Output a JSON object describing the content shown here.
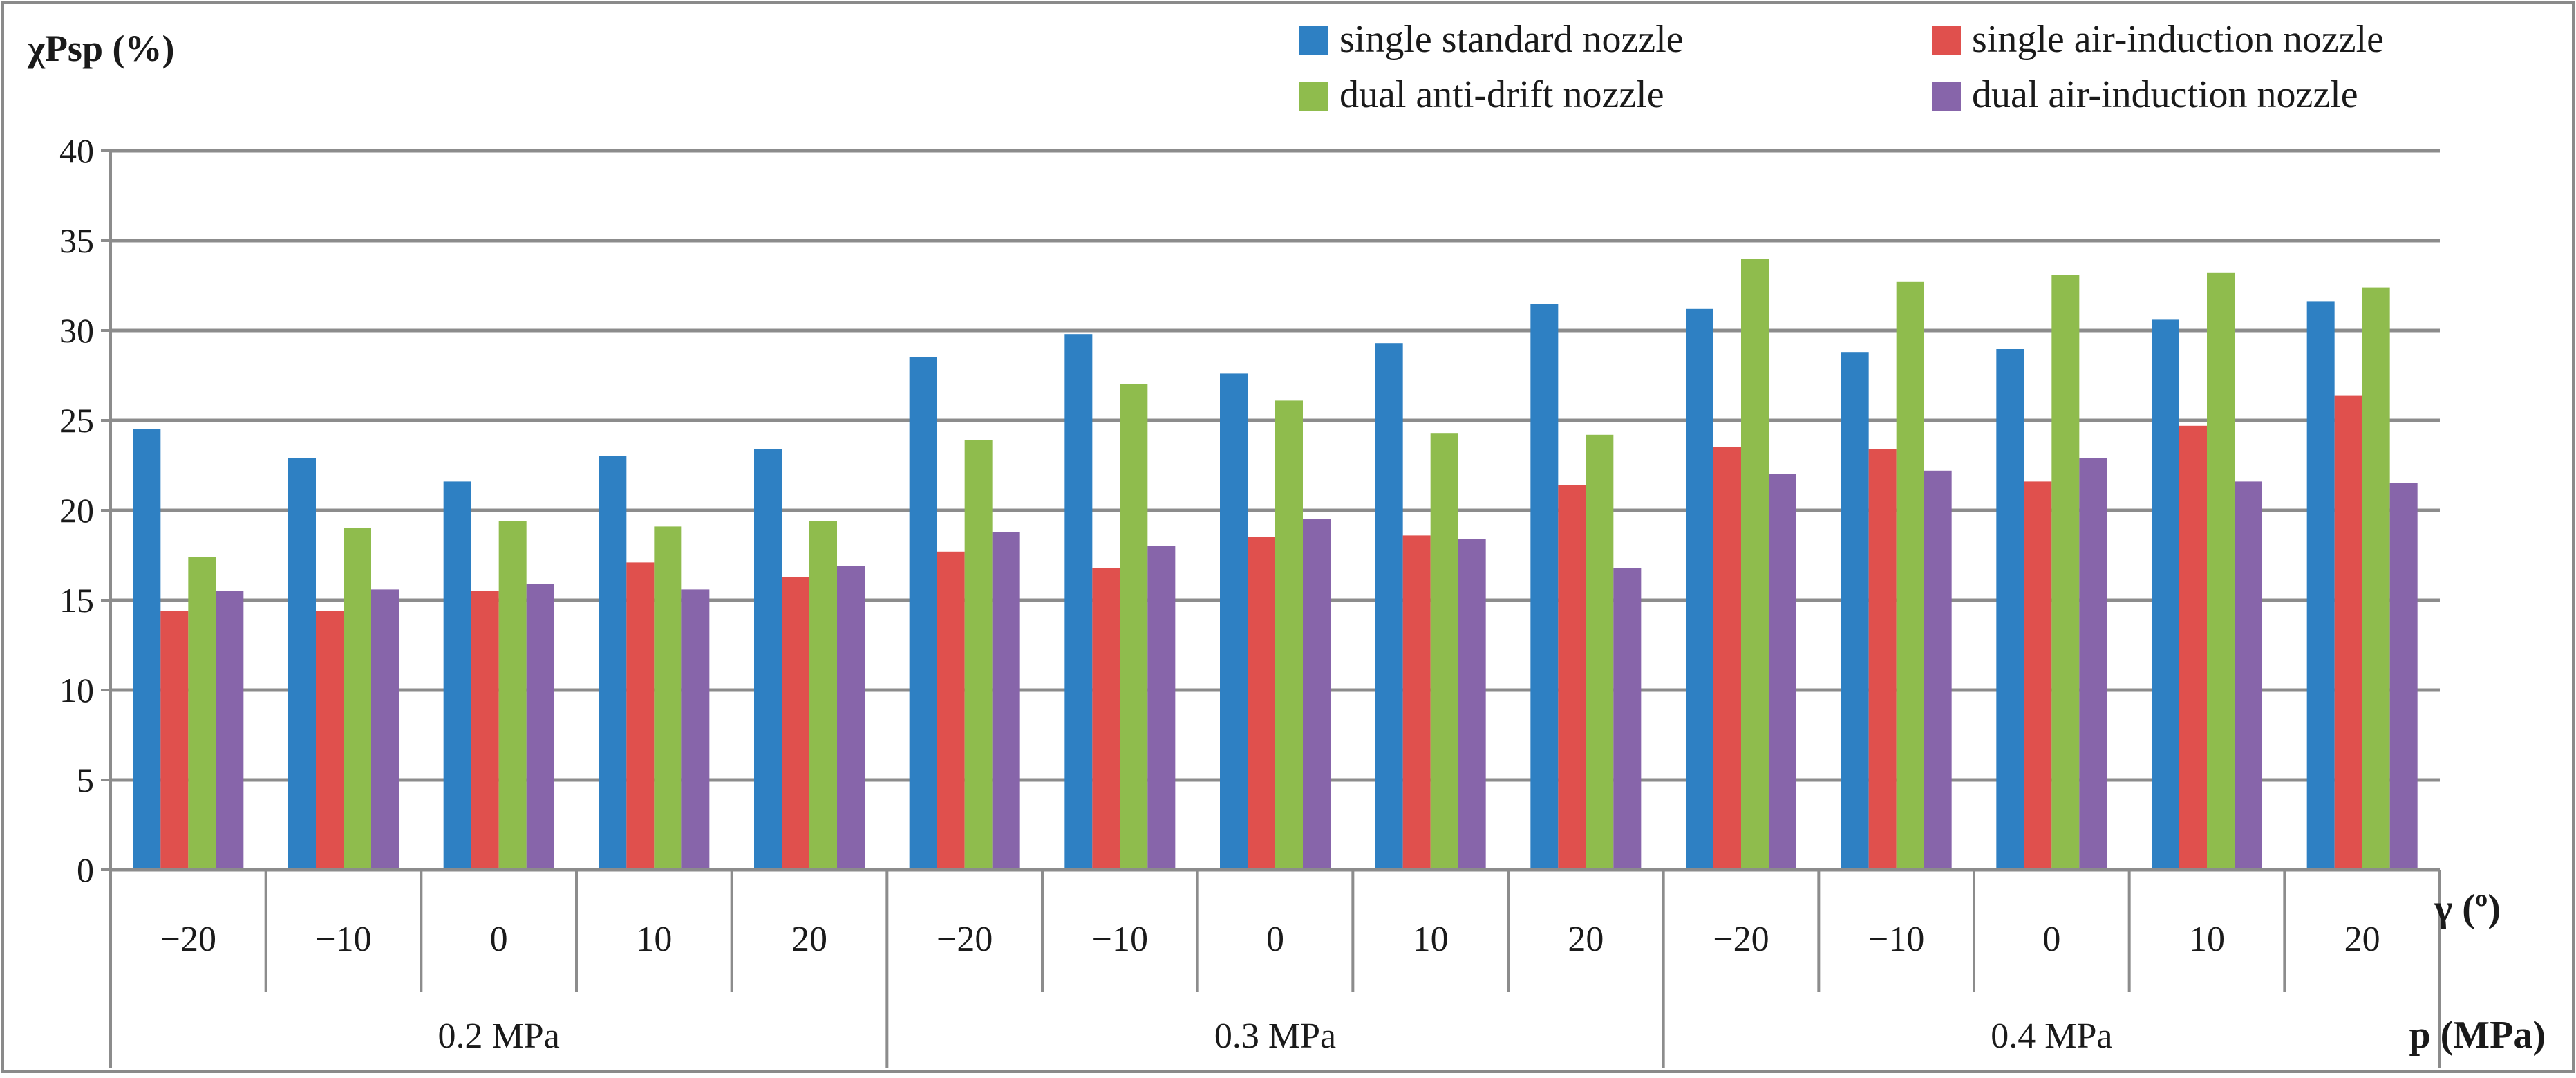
{
  "chart_data": {
    "type": "bar",
    "ylabel": "χPsp (%)",
    "xlabel_angle": "γ (º)",
    "xlabel_pressure": "p (MPa)",
    "ylim": [
      0,
      40
    ],
    "yticks": [
      "0",
      "5",
      "10",
      "15",
      "20",
      "25",
      "30",
      "35",
      "40"
    ],
    "legend_position": "top-right",
    "groups": [
      {
        "pressure": "0.2 MPa",
        "angles": [
          "−20",
          "−10",
          "0",
          "10",
          "20"
        ]
      },
      {
        "pressure": "0.3 MPa",
        "angles": [
          "−20",
          "−10",
          "0",
          "10",
          "20"
        ]
      },
      {
        "pressure": "0.4 MPa",
        "angles": [
          "−20",
          "−10",
          "0",
          "10",
          "20"
        ]
      }
    ],
    "series": [
      {
        "name": "single standard nozzle",
        "color": "#2E80C3",
        "values": [
          24.5,
          22.9,
          21.6,
          23.0,
          23.4,
          28.5,
          29.8,
          27.6,
          29.3,
          31.5,
          31.2,
          28.8,
          29.0,
          30.6,
          31.6
        ]
      },
      {
        "name": "single air-induction nozzle",
        "color": "#E0504D",
        "values": [
          14.4,
          14.4,
          15.5,
          17.1,
          16.3,
          17.7,
          16.8,
          18.5,
          18.6,
          21.4,
          23.5,
          23.4,
          21.6,
          24.7,
          26.4
        ]
      },
      {
        "name": "dual anti-drift nozzle",
        "color": "#8FBC4D",
        "values": [
          17.4,
          19.0,
          19.4,
          19.1,
          19.4,
          23.9,
          27.0,
          26.1,
          24.3,
          24.2,
          34.0,
          32.7,
          33.1,
          33.2,
          32.4
        ]
      },
      {
        "name": "dual air-induction nozzle",
        "color": "#8765AA",
        "values": [
          15.5,
          15.6,
          15.9,
          15.6,
          16.9,
          18.8,
          18.0,
          19.5,
          18.4,
          16.8,
          22.0,
          22.2,
          22.9,
          21.6,
          21.5
        ]
      }
    ]
  }
}
